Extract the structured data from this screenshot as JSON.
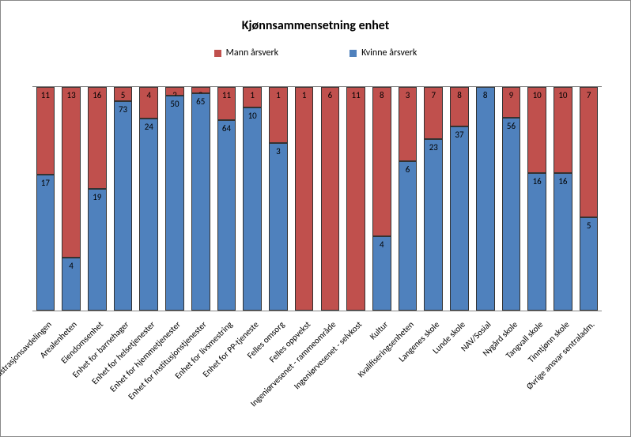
{
  "chart": {
    "type": "stacked-bar-100",
    "title": "Kjønnsammensetning enhet",
    "title_fontsize": 16,
    "background_color": "#ffffff",
    "plot_border_color": "#888888",
    "bar_border_color": "#333333",
    "series": [
      {
        "name": "Mann årsverk",
        "color": "#c0504d"
      },
      {
        "name": "Kvinne årsverk",
        "color": "#4f81bd"
      }
    ],
    "legend": {
      "position": "top",
      "fontsize": 12
    },
    "categories": [
      "Administrasjonsavdelingen",
      "Arealenheten",
      "Eiendomsenhet",
      "Enhet for barnehager",
      "Enhet for helsetjenester",
      "Enhet for hjemmetjenester",
      "Enhet for institusjonstjenester",
      "Enhet for livsmestring",
      "Enhet for PP-tjeneste",
      "Felles omsorg",
      "Felles oppvekst",
      "Ingeniørvesenet - rammeområde",
      "Ingeniørvesenet - selvkost",
      "Kultur",
      "Kvalifiseringsenheten",
      "Langenes skole",
      "Lunde skole",
      "NAV/Sosial",
      "Nygård skole",
      "Tangvall skole",
      "Tinntjønn skole",
      "Øvrige ansvar sentraladm."
    ],
    "mann": [
      11,
      13,
      16,
      5,
      4,
      2,
      2,
      11,
      1,
      1,
      1,
      6,
      11,
      8,
      3,
      7,
      8,
      0,
      9,
      10,
      10,
      7
    ],
    "kvinne": [
      17,
      4,
      19,
      73,
      24,
      50,
      65,
      64,
      10,
      3,
      0,
      0,
      0,
      4,
      6,
      23,
      37,
      8,
      56,
      16,
      16,
      5
    ],
    "label_fontsize": 11,
    "xlabel_fontsize": 11,
    "xlabel_rotation": -45,
    "bar_gap_ratio": 0.28
  }
}
